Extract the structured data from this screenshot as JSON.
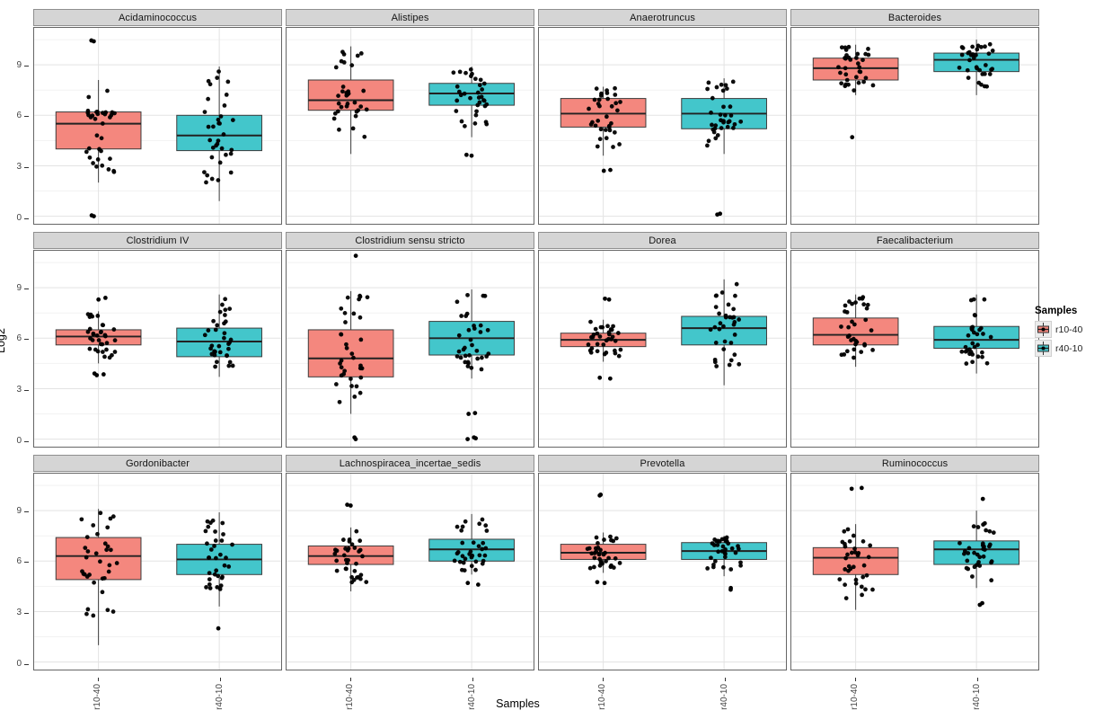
{
  "figure": {
    "xlabel": "Samples",
    "ylabel": "Log2",
    "legend": {
      "title": "Samples",
      "items": [
        {
          "label": "r10-40",
          "color": "#F4877E"
        },
        {
          "label": "r40-10",
          "color": "#43C6CB"
        }
      ]
    }
  },
  "chart_data": {
    "type": "boxplot",
    "facet_grid": {
      "rows": 3,
      "cols": 4
    },
    "x_categories": [
      "r10-40",
      "r40-10"
    ],
    "group_colors": {
      "r10-40": "#F4877E",
      "r40-10": "#43C6CB"
    },
    "points_per_group": 34,
    "ylabel": "Log2",
    "xlabel": "Samples",
    "yticks": [
      0,
      3,
      6,
      9
    ],
    "ylim": [
      -0.45,
      11.2
    ],
    "grid": {
      "major": [
        0,
        3,
        6,
        9
      ],
      "minor": [
        1.5,
        4.5,
        7.5,
        10.5
      ]
    },
    "legend_position": "right",
    "panels": [
      {
        "title": "Acidaminococcus",
        "boxes": [
          {
            "group": "r10-40",
            "lo": 2.0,
            "q1": 4.0,
            "med": 5.5,
            "q3": 6.2,
            "hi": 8.1,
            "outliers": [
              10.4,
              10.45,
              0.0,
              0.05
            ]
          },
          {
            "group": "r40-10",
            "lo": 0.9,
            "q1": 3.9,
            "med": 4.8,
            "q3": 6.0,
            "hi": 8.9,
            "outliers": []
          }
        ]
      },
      {
        "title": "Alistipes",
        "boxes": [
          {
            "group": "r10-40",
            "lo": 3.7,
            "q1": 6.3,
            "med": 6.9,
            "q3": 8.1,
            "hi": 10.1,
            "outliers": []
          },
          {
            "group": "r40-10",
            "lo": 4.7,
            "q1": 6.6,
            "med": 7.3,
            "q3": 7.9,
            "hi": 8.9,
            "outliers": [
              3.6,
              3.65
            ]
          }
        ]
      },
      {
        "title": "Anaerotruncus",
        "boxes": [
          {
            "group": "r10-40",
            "lo": 3.6,
            "q1": 5.3,
            "med": 6.1,
            "q3": 7.0,
            "hi": 7.7,
            "outliers": [
              2.7,
              2.75
            ]
          },
          {
            "group": "r40-10",
            "lo": 3.7,
            "q1": 5.2,
            "med": 6.1,
            "q3": 7.0,
            "hi": 8.2,
            "outliers": [
              0.1,
              0.15
            ]
          }
        ]
      },
      {
        "title": "Bacteroides",
        "boxes": [
          {
            "group": "r10-40",
            "lo": 7.2,
            "q1": 8.1,
            "med": 8.8,
            "q3": 9.4,
            "hi": 10.2,
            "outliers": [
              4.7
            ]
          },
          {
            "group": "r40-10",
            "lo": 7.2,
            "q1": 8.6,
            "med": 9.3,
            "q3": 9.7,
            "hi": 10.5,
            "outliers": []
          }
        ]
      },
      {
        "title": "Clostridium IV",
        "boxes": [
          {
            "group": "r10-40",
            "lo": 4.5,
            "q1": 5.6,
            "med": 6.1,
            "q3": 6.5,
            "hi": 7.6,
            "outliers": [
              8.4,
              8.3,
              3.8,
              3.85,
              3.9
            ]
          },
          {
            "group": "r40-10",
            "lo": 3.7,
            "q1": 4.9,
            "med": 5.8,
            "q3": 6.6,
            "hi": 8.6,
            "outliers": []
          }
        ]
      },
      {
        "title": "Clostridium sensu stricto",
        "boxes": [
          {
            "group": "r10-40",
            "lo": 1.5,
            "q1": 3.7,
            "med": 4.8,
            "q3": 6.5,
            "hi": 8.8,
            "outliers": [
              10.9,
              0.0,
              0.1
            ]
          },
          {
            "group": "r40-10",
            "lo": 3.6,
            "q1": 5.0,
            "med": 6.0,
            "q3": 7.0,
            "hi": 8.9,
            "outliers": [
              1.5,
              1.55,
              0.0,
              0.05,
              0.1
            ]
          }
        ]
      },
      {
        "title": "Dorea",
        "boxes": [
          {
            "group": "r10-40",
            "lo": 4.6,
            "q1": 5.5,
            "med": 5.9,
            "q3": 6.3,
            "hi": 7.1,
            "outliers": [
              8.3,
              8.35,
              3.6,
              3.65
            ]
          },
          {
            "group": "r40-10",
            "lo": 3.2,
            "q1": 5.6,
            "med": 6.6,
            "q3": 7.3,
            "hi": 9.5,
            "outliers": []
          }
        ]
      },
      {
        "title": "Faecalibacterium",
        "boxes": [
          {
            "group": "r10-40",
            "lo": 4.3,
            "q1": 5.6,
            "med": 6.2,
            "q3": 7.2,
            "hi": 8.6,
            "outliers": []
          },
          {
            "group": "r40-10",
            "lo": 3.9,
            "q1": 5.4,
            "med": 5.9,
            "q3": 6.7,
            "hi": 8.6,
            "outliers": []
          }
        ]
      },
      {
        "title": "Gordonibacter",
        "boxes": [
          {
            "group": "r10-40",
            "lo": 1.0,
            "q1": 4.9,
            "med": 6.3,
            "q3": 7.4,
            "hi": 9.1,
            "outliers": []
          },
          {
            "group": "r40-10",
            "lo": 3.3,
            "q1": 5.2,
            "med": 6.1,
            "q3": 7.0,
            "hi": 8.9,
            "outliers": [
              2.0
            ]
          }
        ]
      },
      {
        "title": "Lachnospiracea_incertae_sedis",
        "boxes": [
          {
            "group": "r10-40",
            "lo": 4.2,
            "q1": 5.8,
            "med": 6.3,
            "q3": 6.9,
            "hi": 8.0,
            "outliers": [
              9.3,
              9.35
            ]
          },
          {
            "group": "r40-10",
            "lo": 5.2,
            "q1": 6.0,
            "med": 6.7,
            "q3": 7.3,
            "hi": 8.8,
            "outliers": [
              4.6,
              4.7
            ]
          }
        ]
      },
      {
        "title": "Prevotella",
        "boxes": [
          {
            "group": "r10-40",
            "lo": 5.3,
            "q1": 6.1,
            "med": 6.5,
            "q3": 7.0,
            "hi": 7.7,
            "outliers": [
              9.9,
              9.95,
              4.7,
              4.75
            ]
          },
          {
            "group": "r40-10",
            "lo": 5.1,
            "q1": 6.1,
            "med": 6.6,
            "q3": 7.1,
            "hi": 7.5,
            "outliers": [
              4.3,
              4.4
            ]
          }
        ]
      },
      {
        "title": "Ruminococcus",
        "boxes": [
          {
            "group": "r10-40",
            "lo": 3.1,
            "q1": 5.2,
            "med": 6.2,
            "q3": 6.8,
            "hi": 8.2,
            "outliers": [
              10.3,
              10.35
            ]
          },
          {
            "group": "r40-10",
            "lo": 4.4,
            "q1": 5.8,
            "med": 6.7,
            "q3": 7.2,
            "hi": 9.0,
            "outliers": [
              3.4,
              3.5,
              9.7
            ]
          }
        ]
      }
    ]
  }
}
